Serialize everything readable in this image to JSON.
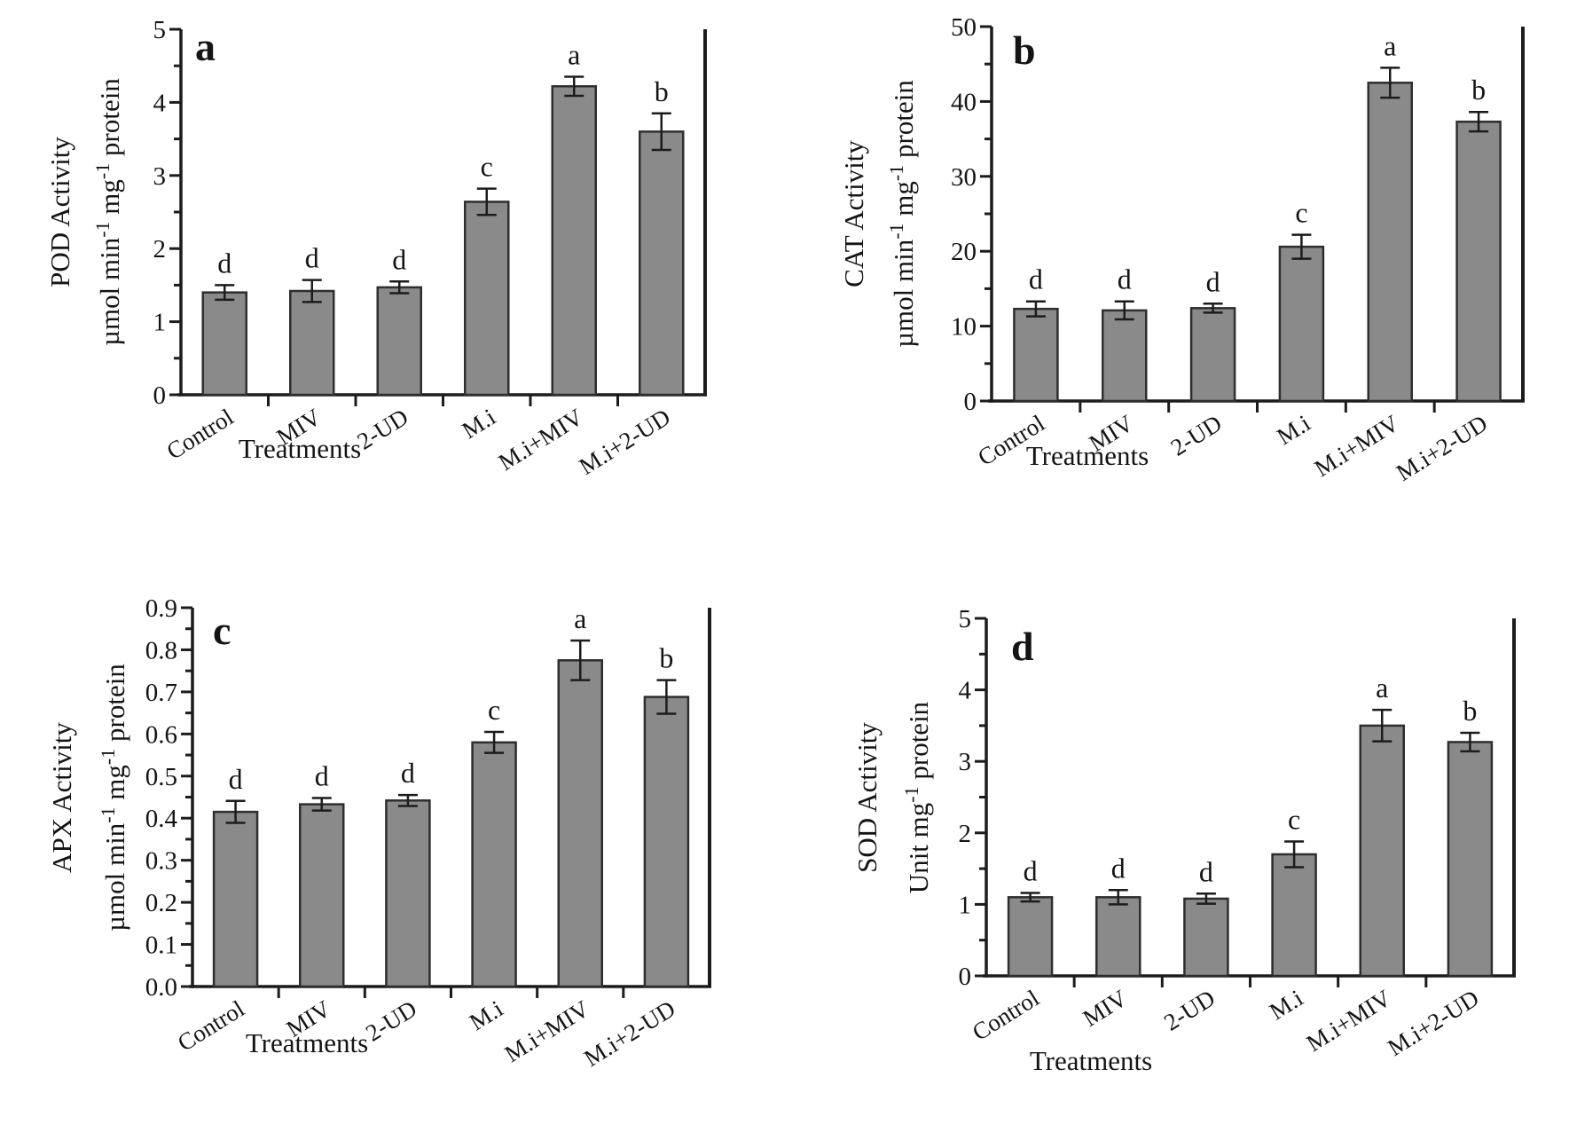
{
  "figure": {
    "description": "Four-panel bar chart of antioxidant enzyme activities under different treatments",
    "background": "#ffffff",
    "bar_fill": "#8a8a8a",
    "bar_stroke": "#2e2e2e",
    "axis_color": "#1c1c1c",
    "text_color": "#141414"
  },
  "chart_data": [
    {
      "type": "bar",
      "panel": "a",
      "ylabel_lines": [
        "POD Activity",
        "µmol min^-1^ mg^-1^ protein"
      ],
      "xlabel": "Treatments",
      "categories": [
        "Control",
        "MIV",
        "2-UD",
        "M.i",
        "M.i+MIV",
        "M.i+2-UD"
      ],
      "values": [
        1.4,
        1.42,
        1.47,
        2.64,
        4.22,
        3.6
      ],
      "errors": [
        0.1,
        0.15,
        0.08,
        0.18,
        0.13,
        0.25
      ],
      "sig_letters": [
        "d",
        "d",
        "d",
        "c",
        "a",
        "b"
      ],
      "ylim": [
        0,
        5
      ],
      "ytick_step": 1,
      "minor_step": 0.5,
      "tick_decimals": 0,
      "grid": false,
      "legend": "none"
    },
    {
      "type": "bar",
      "panel": "b",
      "ylabel_lines": [
        "CAT Activity",
        "µmol min^-1^ mg^-1^ protein"
      ],
      "xlabel": "Treatments",
      "categories": [
        "Control",
        "MIV",
        "2-UD",
        "M.i",
        "M.i+MIV",
        "M.i+2-UD"
      ],
      "values": [
        12.3,
        12.1,
        12.4,
        20.6,
        42.5,
        37.3
      ],
      "errors": [
        1.0,
        1.2,
        0.6,
        1.6,
        2.0,
        1.3
      ],
      "sig_letters": [
        "d",
        "d",
        "d",
        "c",
        "a",
        "b"
      ],
      "ylim": [
        0,
        50
      ],
      "ytick_step": 10,
      "minor_step": 5,
      "tick_decimals": 0,
      "grid": false,
      "legend": "none"
    },
    {
      "type": "bar",
      "panel": "c",
      "ylabel_lines": [
        "APX Activity",
        "µmol min^-1^ mg^-1^ protein"
      ],
      "xlabel": "Treatments",
      "categories": [
        "Control",
        "MIV",
        "2-UD",
        "M.i",
        "M.i+MIV",
        "M.i+2-UD"
      ],
      "values": [
        0.415,
        0.433,
        0.442,
        0.58,
        0.775,
        0.688
      ],
      "errors": [
        0.026,
        0.015,
        0.013,
        0.025,
        0.047,
        0.04
      ],
      "sig_letters": [
        "d",
        "d",
        "d",
        "c",
        "a",
        "b"
      ],
      "ylim": [
        0,
        0.9
      ],
      "ytick_step": 0.1,
      "minor_step": 0.05,
      "tick_decimals": 1,
      "grid": false,
      "legend": "none"
    },
    {
      "type": "bar",
      "panel": "d",
      "ylabel_lines": [
        "SOD Activity",
        "Unit mg^-1^ protein"
      ],
      "xlabel": "Treatments",
      "categories": [
        "Control",
        "MIV",
        "2-UD",
        "M.i",
        "M.i+MIV",
        "M.i+2-UD"
      ],
      "values": [
        1.1,
        1.1,
        1.08,
        1.7,
        3.5,
        3.27
      ],
      "errors": [
        0.06,
        0.1,
        0.07,
        0.18,
        0.22,
        0.13
      ],
      "sig_letters": [
        "d",
        "d",
        "d",
        "c",
        "a",
        "b"
      ],
      "ylim": [
        0,
        5
      ],
      "ytick_step": 1,
      "minor_step": 0.5,
      "tick_decimals": 0,
      "grid": false,
      "legend": "none"
    }
  ]
}
